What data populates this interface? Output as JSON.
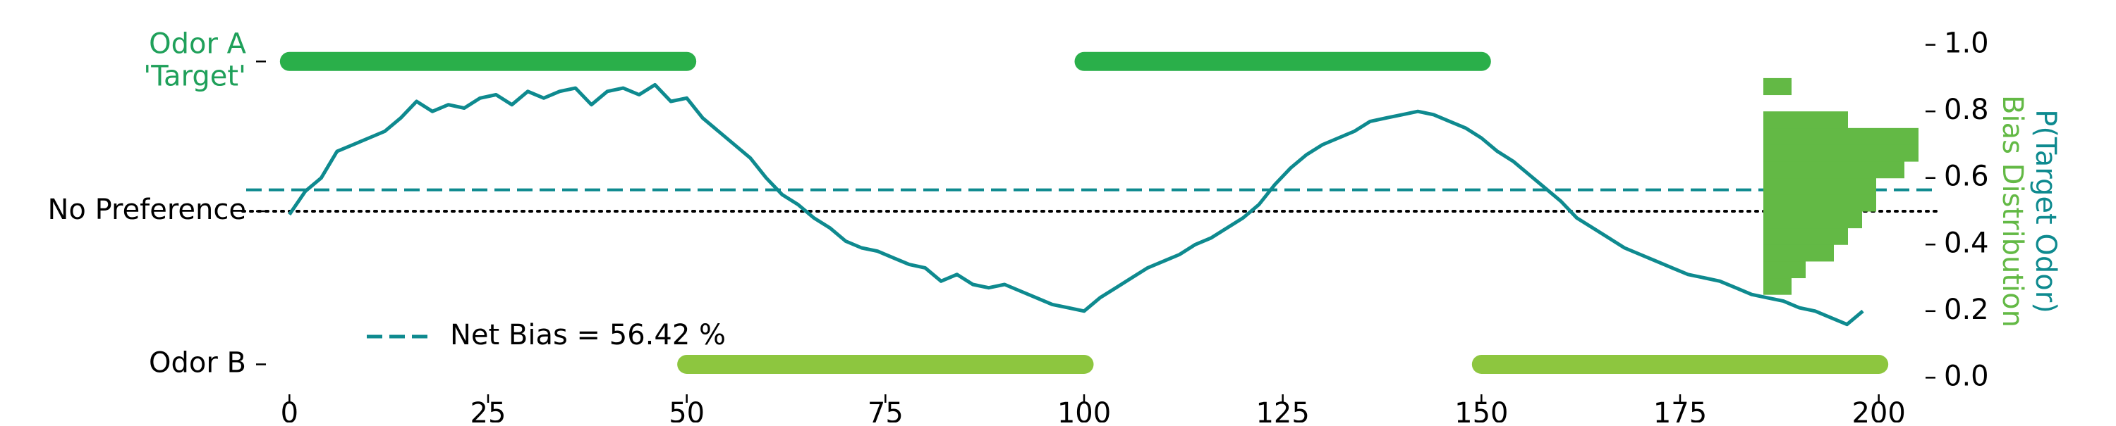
{
  "colors": {
    "trace": "#0e8a8f",
    "odor_a": "#2aaf4a",
    "odor_b": "#8dc63f",
    "histogram": "#63b945",
    "odor_a_label": "#1fa05a",
    "bias_line": "#0e8a8f",
    "axis_text": "#000000",
    "right_label_top": "#0e8a8f",
    "right_label_bottom": "#63b945"
  },
  "chart_data": {
    "type": "line",
    "xlim": [
      -5,
      205
    ],
    "ylim": [
      -0.05,
      1.05
    ],
    "x_ticks": [
      0,
      25,
      50,
      75,
      100,
      125,
      150,
      175,
      200
    ],
    "x_tick_labels": [
      "0",
      "25",
      "50",
      "75",
      "100",
      "125",
      "150",
      "175",
      "200"
    ],
    "right_y_ticks": [
      0.0,
      0.2,
      0.4,
      0.6,
      0.8,
      1.0
    ],
    "right_y_tick_labels": [
      "0.0",
      "0.2",
      "0.4",
      "0.6",
      "0.8",
      "1.0"
    ],
    "right_ylabel_top": "P(Target Odor)",
    "right_ylabel_bottom": "Bias Distribution",
    "left_y_ticks": [
      {
        "y": 0.95,
        "lines": [
          "Odor A",
          "'Target'"
        ],
        "color_key": "odor_a_label"
      },
      {
        "y": 0.5,
        "lines": [
          "No Preference"
        ],
        "color_key": "axis_text"
      },
      {
        "y": 0.04,
        "lines": [
          "Odor B"
        ],
        "color_key": "axis_text"
      }
    ],
    "net_bias": 0.5642,
    "no_preference_level": 0.5,
    "legend": {
      "label": "Net Bias = 56.42 %",
      "placement": "lower-left"
    },
    "odor_blocks": [
      {
        "odor": "A",
        "x_start": 0,
        "x_end": 50,
        "y": 0.95
      },
      {
        "odor": "B",
        "x_start": 50,
        "x_end": 100,
        "y": 0.04
      },
      {
        "odor": "A",
        "x_start": 100,
        "x_end": 150,
        "y": 0.95
      },
      {
        "odor": "B",
        "x_start": 150,
        "x_end": 200,
        "y": 0.04
      }
    ],
    "series": [
      {
        "x": [
          0,
          2,
          4,
          6,
          8,
          10,
          12,
          14,
          16,
          18,
          20,
          22,
          24,
          26,
          28,
          30,
          32,
          34,
          36,
          38,
          40,
          42,
          44,
          46,
          48,
          50,
          52,
          54,
          56,
          58,
          60,
          62,
          64,
          66,
          68,
          70,
          72,
          74,
          76,
          78,
          80,
          82,
          84,
          86,
          88,
          90,
          92,
          94,
          96,
          98,
          100,
          102,
          104,
          106,
          108,
          110,
          112,
          114,
          116,
          118,
          120,
          122,
          124,
          126,
          128,
          130,
          132,
          134,
          136,
          138,
          140,
          142,
          144,
          146,
          148,
          150,
          152,
          154,
          156,
          158,
          160,
          162,
          164,
          166,
          168,
          170,
          172,
          174,
          176,
          178,
          180,
          182,
          184,
          186,
          188,
          190,
          192,
          194,
          196,
          198
        ],
        "y": [
          0.49,
          0.56,
          0.6,
          0.68,
          0.7,
          0.72,
          0.74,
          0.78,
          0.83,
          0.8,
          0.82,
          0.81,
          0.84,
          0.85,
          0.82,
          0.86,
          0.84,
          0.86,
          0.87,
          0.82,
          0.86,
          0.87,
          0.85,
          0.88,
          0.83,
          0.84,
          0.78,
          0.74,
          0.7,
          0.66,
          0.6,
          0.55,
          0.52,
          0.48,
          0.45,
          0.41,
          0.39,
          0.38,
          0.36,
          0.34,
          0.33,
          0.29,
          0.31,
          0.28,
          0.27,
          0.28,
          0.26,
          0.24,
          0.22,
          0.21,
          0.2,
          0.24,
          0.27,
          0.3,
          0.33,
          0.35,
          0.37,
          0.4,
          0.42,
          0.45,
          0.48,
          0.52,
          0.58,
          0.63,
          0.67,
          0.7,
          0.72,
          0.74,
          0.77,
          0.78,
          0.79,
          0.8,
          0.79,
          0.77,
          0.75,
          0.72,
          0.68,
          0.65,
          0.61,
          0.57,
          0.53,
          0.48,
          0.45,
          0.42,
          0.39,
          0.37,
          0.35,
          0.33,
          0.31,
          0.3,
          0.29,
          0.27,
          0.25,
          0.24,
          0.23,
          0.21,
          0.2,
          0.18,
          0.16,
          0.2
        ]
      }
    ],
    "histogram": {
      "bin_edges": [
        0.25,
        0.3,
        0.35,
        0.4,
        0.45,
        0.5,
        0.55,
        0.6,
        0.65,
        0.7,
        0.75,
        0.8,
        0.85,
        0.9
      ],
      "counts": [
        2,
        3,
        5,
        6,
        7,
        8,
        8,
        10,
        11,
        11,
        6,
        0,
        2
      ]
    }
  }
}
